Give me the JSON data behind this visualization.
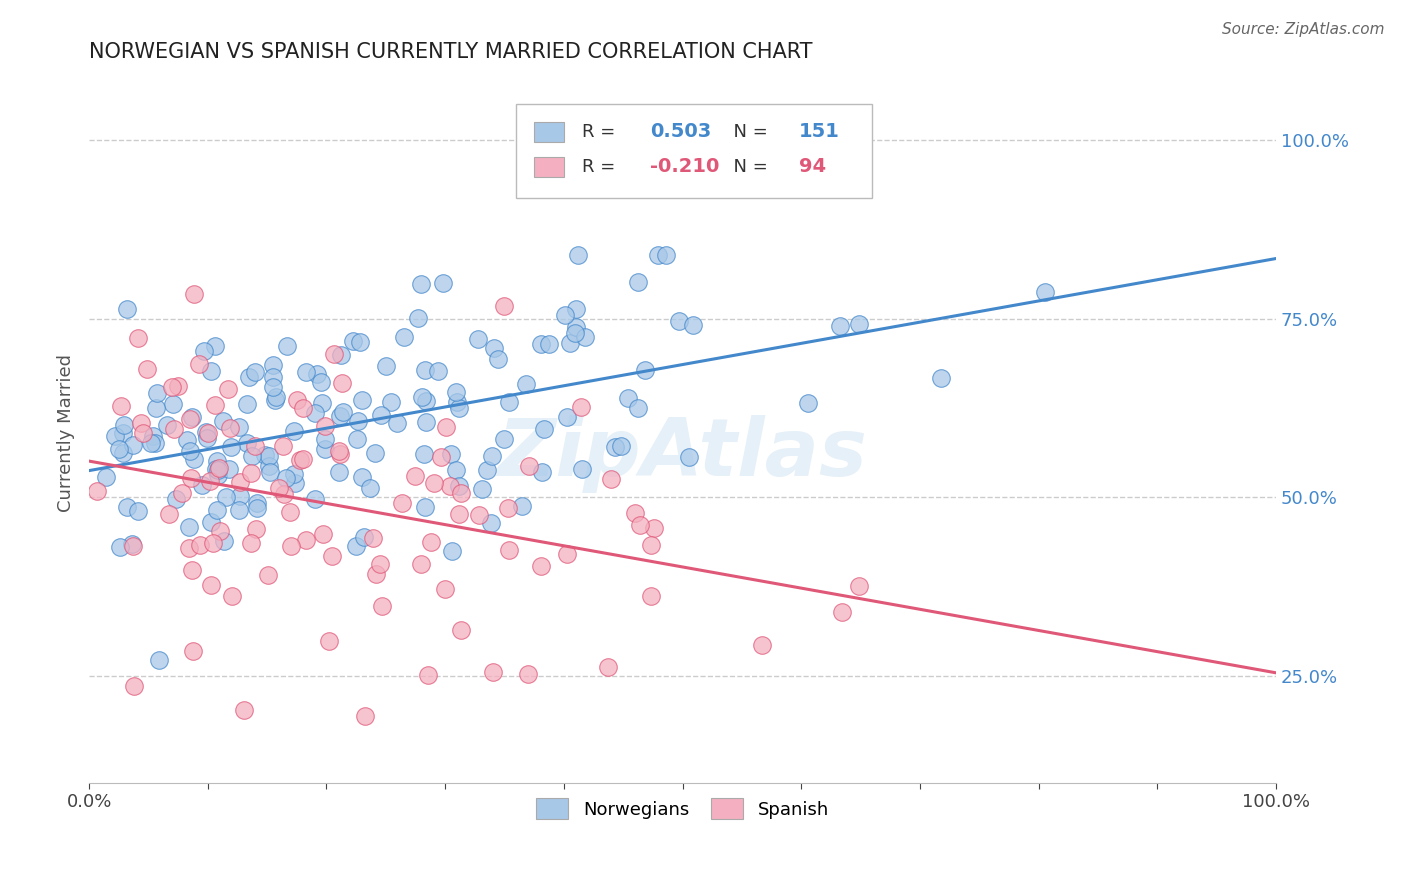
{
  "title": "NORWEGIAN VS SPANISH CURRENTLY MARRIED CORRELATION CHART",
  "source": "Source: ZipAtlas.com",
  "ylabel": "Currently Married",
  "xlim": [
    0.0,
    1.0
  ],
  "ylim": [
    0.1,
    1.08
  ],
  "x_ticks": [
    0.0,
    0.1,
    0.2,
    0.3,
    0.4,
    0.5,
    0.6,
    0.7,
    0.8,
    0.9,
    1.0
  ],
  "x_tick_labels": [
    "0.0%",
    "",
    "",
    "",
    "",
    "",
    "",
    "",
    "",
    "",
    "100.0%"
  ],
  "y_tick_labels": [
    "25.0%",
    "50.0%",
    "75.0%",
    "100.0%"
  ],
  "y_ticks": [
    0.25,
    0.5,
    0.75,
    1.0
  ],
  "norwegian_R": 0.503,
  "norwegian_N": 151,
  "spanish_R": -0.21,
  "spanish_N": 94,
  "norwegian_color": "#a8c8e8",
  "spanish_color": "#f4b0c0",
  "norwegian_line_color": "#4488cc",
  "spanish_line_color": "#e05878",
  "tick_color": "#4488cc",
  "watermark": "ZipAtlas",
  "legend_label_norwegian": "Norwegians",
  "legend_label_spanish": "Spanish"
}
